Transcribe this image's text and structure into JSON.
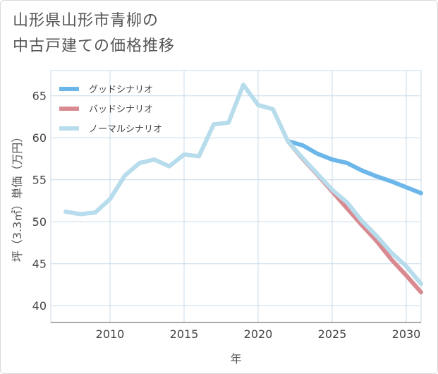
{
  "title_lines": [
    "山形県山形市青柳の",
    "中古戸建ての価格推移"
  ],
  "chart_data": {
    "type": "line",
    "xlabel": "年",
    "ylabel": "坪（3.3㎡）単価（万円）",
    "xlim": [
      2006,
      2031
    ],
    "ylim": [
      38,
      68
    ],
    "xticks": [
      2010,
      2015,
      2020,
      2025,
      2030
    ],
    "yticks": [
      40,
      45,
      50,
      55,
      60,
      65
    ],
    "grid": true,
    "legend_position": "top-left",
    "series": [
      {
        "name": "グッドシナリオ",
        "color": "#6cb6ea",
        "x": [
          2022,
          2023,
          2024,
          2025,
          2026,
          2027,
          2028,
          2029,
          2030,
          2031
        ],
        "y": [
          59.6,
          59.1,
          58.1,
          57.4,
          57.0,
          56.1,
          55.4,
          54.8,
          54.1,
          53.4
        ]
      },
      {
        "name": "バッドシナリオ",
        "color": "#d98a91",
        "x": [
          2022,
          2023,
          2024,
          2025,
          2026,
          2027,
          2028,
          2029,
          2030,
          2031
        ],
        "y": [
          59.6,
          57.5,
          55.6,
          53.6,
          51.6,
          49.6,
          47.7,
          45.5,
          43.6,
          41.6
        ]
      },
      {
        "name": "ノーマルシナリオ",
        "color": "#b7dcec",
        "x": [
          2007,
          2008,
          2009,
          2010,
          2011,
          2012,
          2013,
          2014,
          2015,
          2016,
          2017,
          2018,
          2019,
          2020,
          2021,
          2022,
          2023,
          2024,
          2025,
          2026,
          2027,
          2028,
          2029,
          2030,
          2031
        ],
        "y": [
          51.2,
          50.9,
          51.1,
          52.7,
          55.5,
          57.0,
          57.4,
          56.6,
          58.0,
          57.8,
          61.6,
          61.8,
          66.3,
          63.9,
          63.4,
          59.6,
          57.6,
          55.7,
          53.8,
          52.3,
          50.1,
          48.3,
          46.3,
          44.7,
          42.6
        ]
      }
    ]
  }
}
